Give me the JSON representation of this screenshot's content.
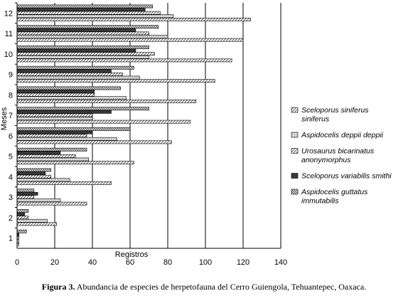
{
  "caption": {
    "label": "Figura 3.",
    "text": " Abundancia de especies de herpetofauna del Cerro Guiengola, Tehuantepec, Oaxaca."
  },
  "chart_data": {
    "type": "bar",
    "orientation": "horizontal",
    "xlabel": "Registros",
    "ylabel": "Meses",
    "xlim": [
      0,
      140
    ],
    "xticks": [
      0,
      20,
      40,
      60,
      80,
      100,
      120,
      140
    ],
    "grid": "vertical",
    "legend_position": "right",
    "categories": [
      "1",
      "2",
      "3",
      "4",
      "5",
      "6",
      "7",
      "8",
      "9",
      "10",
      "11",
      "12"
    ],
    "series": [
      {
        "name": "Sceloporus siniferus siniferus",
        "legend_lines": [
          "Sceloporus siniferus",
          "siniferus"
        ],
        "pattern": "hatch-light",
        "values": [
          1,
          21,
          37,
          50,
          62,
          82,
          92,
          95,
          105,
          114,
          120,
          124
        ]
      },
      {
        "name": "Aspidocelis deppii deppii",
        "legend_lines": [
          "Aspidocelis deppii deppii"
        ],
        "pattern": "dots",
        "values": [
          1,
          16,
          23,
          28,
          38,
          53,
          40,
          58,
          65,
          70,
          80,
          83
        ]
      },
      {
        "name": "Urosaurus bicarinatus anonymorphus",
        "legend_lines": [
          "Urosaurus bicarinatus",
          "anonymorphus"
        ],
        "pattern": "hatch-light",
        "values": [
          1,
          6,
          9,
          18,
          31,
          37,
          40,
          41,
          56,
          73,
          70,
          76
        ]
      },
      {
        "name": "Sceloporus variabilis smithi",
        "legend_lines": [
          "Sceloporus variabilis smithi"
        ],
        "pattern": "dark",
        "values": [
          1,
          4,
          11,
          15,
          23,
          40,
          50,
          41,
          50,
          63,
          63,
          68
        ]
      },
      {
        "name": "Aspidocelis guttatus immutabilis",
        "legend_lines": [
          "Aspidocelis guttatus",
          "immutabilis"
        ],
        "pattern": "hatch-medium",
        "values": [
          5,
          6,
          9,
          18,
          37,
          60,
          70,
          55,
          62,
          70,
          75,
          72
        ]
      }
    ]
  }
}
